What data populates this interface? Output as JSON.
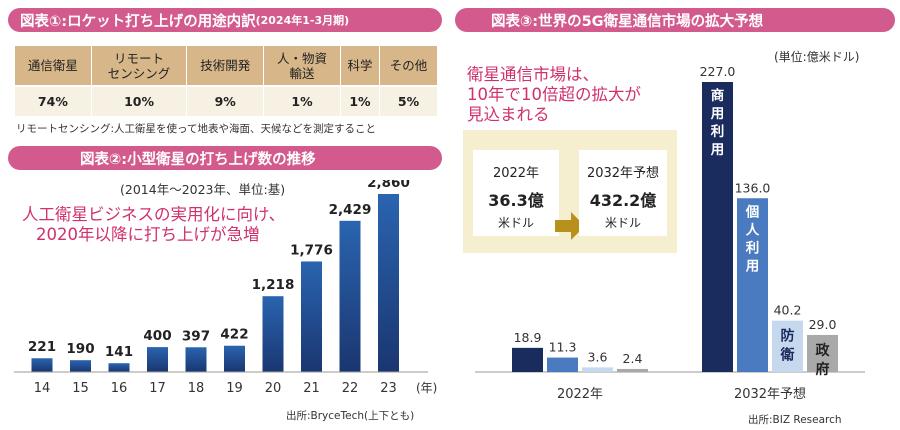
{
  "chart1": {
    "title": "図表①:ロケット打ち上げの用途内訳",
    "title_period": "(2024年1-3月期)",
    "note": "リモートセンシング:人工衛星を使って地表や海面、天候などを測定すること"
  },
  "chart2": {
    "title": "図表②:小型衛星の打ち上げ数の推移",
    "subtitle": "(2014年～2023年、単位:基)",
    "annotation_line1": "人工衛星ビジネスの実用化に向け、",
    "annotation_line2": "2020年以降に打ち上げが急増",
    "source": "出所:BryceTech(上下とも)"
  },
  "chart3": {
    "title": "図表③:世界の5G衛星通信市場の拡大予想",
    "unit": "(単位:億米ドル)",
    "annotation_line1": "衛星通信市場は、",
    "annotation_line2": "10年で10倍超の拡大が",
    "annotation_line3": "見込まれる",
    "box_left": {
      "year": "2022年",
      "value": "36.3億",
      "unit": "米ドル"
    },
    "box_right": {
      "year": "2032年予想",
      "value": "432.2億",
      "unit": "米ドル"
    },
    "source": "出所:BIZ Research"
  },
  "chart_data": [
    {
      "type": "table",
      "title": "図表①:ロケット打ち上げの用途内訳(2024年1-3月期)",
      "columns": [
        "通信衛星",
        "リモート\nセンシング",
        "技術開発",
        "人・物資\n輸送",
        "科学",
        "その他"
      ],
      "rows": [
        [
          "74%",
          "10%",
          "9%",
          "1%",
          "1%",
          "5%"
        ]
      ]
    },
    {
      "type": "bar",
      "title": "図表②:小型衛星の打ち上げ数の推移",
      "categories": [
        "14",
        "15",
        "16",
        "17",
        "18",
        "19",
        "20",
        "21",
        "22",
        "23"
      ],
      "values": [
        221,
        190,
        141,
        400,
        397,
        422,
        1218,
        1776,
        2429,
        2860
      ],
      "value_labels": [
        "221",
        "190",
        "141",
        "400",
        "397",
        "422",
        "1,218",
        "1,776",
        "2,429",
        "2,860"
      ],
      "x_unit": "(年)",
      "ylim": [
        0,
        2860
      ],
      "colors": [
        "#1a3670",
        "#2a64b0"
      ]
    },
    {
      "type": "bar",
      "title": "図表③:世界の5G衛星通信市場の拡大予想",
      "categories": [
        "2022年",
        "2032年予想"
      ],
      "series": [
        {
          "name": "商用利用",
          "values": [
            18.9,
            227.0
          ],
          "labels": [
            "18.9",
            "227.0"
          ],
          "color": "#1a2b5e"
        },
        {
          "name": "個人利用",
          "values": [
            11.3,
            136.0
          ],
          "labels": [
            "11.3",
            "136.0"
          ],
          "color": "#4a7bc0"
        },
        {
          "name": "防衛",
          "values": [
            3.6,
            40.2
          ],
          "labels": [
            "3.6",
            "40.2"
          ],
          "color": "#c5d8ee"
        },
        {
          "name": "政府",
          "values": [
            2.4,
            29.0
          ],
          "labels": [
            "2.4",
            "29.0"
          ],
          "color": "#a9a9a9"
        }
      ],
      "ylim": [
        0,
        227.0
      ]
    }
  ]
}
